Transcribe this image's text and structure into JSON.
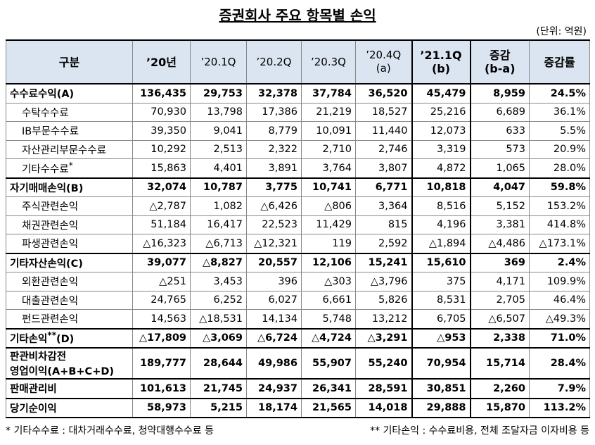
{
  "title": "증권회사 주요 항목별 손익",
  "unit": "(단위: 억원)",
  "header": [
    "구분",
    "’20년",
    "’20.1Q",
    "’20.2Q",
    "’20.3Q",
    [
      "’20.4Q",
      "(a)"
    ],
    [
      "’21.1Q",
      "(b)"
    ],
    [
      "증감",
      "(b-a)"
    ],
    "증감률"
  ],
  "rows": [
    {
      "label": "수수료수익(A)",
      "bold": true,
      "values": [
        "136,435",
        "29,753",
        "32,378",
        "37,784",
        "36,520",
        "45,479",
        "8,959",
        "24.5%"
      ]
    },
    {
      "label": "수탁수수료",
      "values": [
        "70,930",
        "13,798",
        "17,386",
        "21,219",
        "18,527",
        "25,216",
        "6,689",
        "36.1%"
      ]
    },
    {
      "label": "IB부문수수료",
      "values": [
        "39,350",
        "9,041",
        "8,779",
        "10,091",
        "11,440",
        "12,073",
        "633",
        "5.5%"
      ]
    },
    {
      "label": "자산관리부문수수료",
      "values": [
        "10,292",
        "2,513",
        "2,322",
        "2,710",
        "2,746",
        "3,319",
        "573",
        "20.9%"
      ]
    },
    {
      "label": "기타수수료",
      "sup": "*",
      "values": [
        "15,863",
        "4,401",
        "3,891",
        "3,764",
        "3,807",
        "4,872",
        "1,065",
        "28.0%"
      ]
    },
    {
      "label": "자기매매손익(B)",
      "bold": true,
      "values": [
        "32,074",
        "10,787",
        "3,775",
        "10,741",
        "6,771",
        "10,818",
        "4,047",
        "59.8%"
      ]
    },
    {
      "label": "주식관련손익",
      "values": [
        "△2,787",
        "1,082",
        "△6,426",
        "△806",
        "3,364",
        "8,516",
        "5,152",
        "153.2%"
      ]
    },
    {
      "label": "채권관련손익",
      "values": [
        "51,184",
        "16,417",
        "22,523",
        "11,429",
        "815",
        "4,196",
        "3,381",
        "414.8%"
      ]
    },
    {
      "label": "파생관련손익",
      "values": [
        "△16,323",
        "△6,713",
        "△12,321",
        "119",
        "2,592",
        "△1,894",
        "△4,486",
        "△173.1%"
      ]
    },
    {
      "label": "기타자산손익(C)",
      "bold": true,
      "values": [
        "39,077",
        "△8,827",
        "20,557",
        "12,106",
        "15,241",
        "15,610",
        "369",
        "2.4%"
      ]
    },
    {
      "label": "외환관련손익",
      "values": [
        "△251",
        "3,453",
        "396",
        "△303",
        "△3,796",
        "375",
        "4,171",
        "109.9%"
      ]
    },
    {
      "label": "대출관련손익",
      "values": [
        "24,765",
        "6,252",
        "6,027",
        "6,661",
        "5,826",
        "8,531",
        "2,705",
        "46.4%"
      ]
    },
    {
      "label": "펀드관련손익",
      "values": [
        "14,563",
        "△18,531",
        "14,134",
        "5,748",
        "13,212",
        "6,705",
        "△6,507",
        "△49.3%"
      ]
    },
    {
      "label": "기타손익",
      "sup": "**",
      "label_end": "(D)",
      "bold": true,
      "values": [
        "△17,809",
        "△3,069",
        "△6,724",
        "△4,724",
        "△3,291",
        "△953",
        "2,338",
        "71.0%"
      ]
    },
    {
      "label": [
        "판관비차감전",
        "영업이익(A+B+C+D)"
      ],
      "bold": true,
      "values": [
        "189,777",
        "28,644",
        "49,986",
        "55,907",
        "55,240",
        "70,954",
        "15,714",
        "28.4%"
      ]
    },
    {
      "label": "판매관리비",
      "bold": true,
      "values": [
        "101,613",
        "21,745",
        "24,937",
        "26,341",
        "28,591",
        "30,851",
        "2,260",
        "7.9%"
      ]
    },
    {
      "label": "당기순이익",
      "bold": true,
      "values": [
        "58,973",
        "5,215",
        "18,174",
        "21,565",
        "14,018",
        "29,888",
        "15,870",
        "113.2%"
      ]
    }
  ],
  "footnotes": [
    "* 기타수수료 : 대차거래수수료, 청약대행수수료 등",
    "** 기타손익 : 수수료비용, 전체 조달자금 이자비용 등"
  ]
}
